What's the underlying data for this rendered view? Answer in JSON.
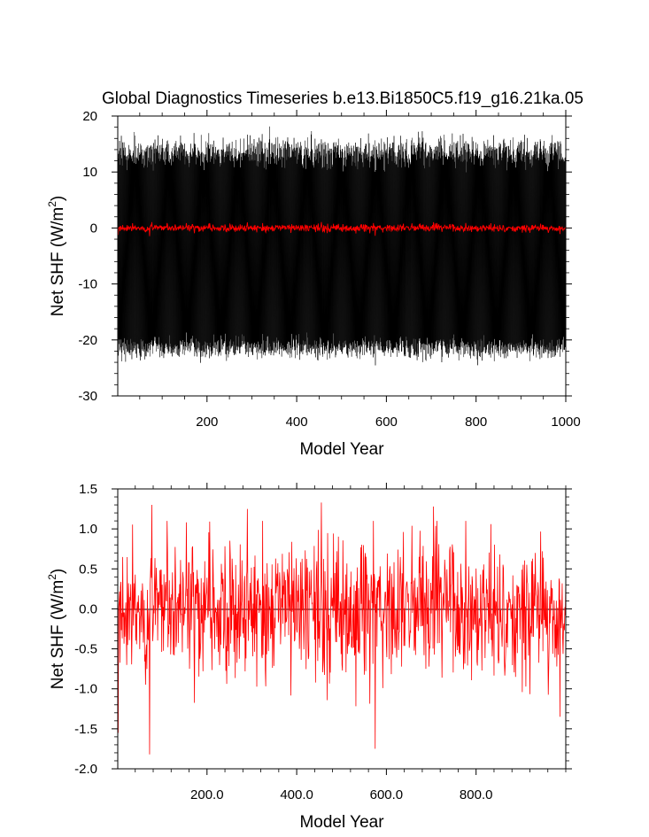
{
  "title": "Global Diagnostics Timeseries b.e13.Bi1850C5.f19_g16.21ka.05",
  "colors": {
    "monthly": "#000000",
    "annual": "#ff0000",
    "axis": "#000000",
    "zero_line": "#000000"
  },
  "chart_data": [
    {
      "type": "line",
      "xlabel": "Model Year",
      "ylabel_main": "Net SHF (W/m",
      "ylabel_sup": "2",
      "ylabel_close": ")",
      "xlim": [
        1,
        1000
      ],
      "ylim": [
        -30,
        20
      ],
      "x_ticks": [
        200,
        400,
        600,
        800,
        1000
      ],
      "x_tick_labels": [
        "200",
        "400",
        "600",
        "800",
        "1000"
      ],
      "y_ticks": [
        -30,
        -20,
        -10,
        0,
        10,
        20
      ],
      "y_tick_labels": [
        "-30",
        "-20",
        "-10",
        "0",
        "10",
        "20"
      ],
      "grid": false,
      "series": [
        {
          "color": "black",
          "resolution": "monthly",
          "typical_range": [
            -22,
            14
          ],
          "extremes": [
            -25,
            19
          ],
          "seasonal_cycle": true
        },
        {
          "color": "red",
          "resolution": "annual",
          "typical_range": [
            -1.0,
            1.0
          ],
          "mean": 0.0
        }
      ]
    },
    {
      "type": "line",
      "xlabel": "Model Year",
      "ylabel_main": "Net SHF (W/m",
      "ylabel_sup": "2",
      "ylabel_close": ")",
      "xlim": [
        1,
        1000
      ],
      "ylim": [
        -2.0,
        1.5
      ],
      "x_ticks": [
        200,
        400,
        600,
        800
      ],
      "x_tick_labels": [
        "200.0",
        "400.0",
        "600.0",
        "800.0"
      ],
      "y_ticks": [
        -2.0,
        -1.5,
        -1.0,
        -0.5,
        0.0,
        0.5,
        1.0,
        1.5
      ],
      "y_tick_labels": [
        "-2.0",
        "-1.5",
        "-1.0",
        "-0.5",
        "0.0",
        "0.5",
        "1.0",
        "1.5"
      ],
      "zero_line": 0,
      "grid": false,
      "series": [
        {
          "color": "red",
          "resolution": "annual",
          "mean": 0.0,
          "notable_points": [
            {
              "x": 2,
              "y": -1.55
            },
            {
              "x": 72,
              "y": -1.82
            },
            {
              "x": 77,
              "y": 1.3
            },
            {
              "x": 290,
              "y": 1.25
            },
            {
              "x": 455,
              "y": 1.33
            },
            {
              "x": 575,
              "y": -1.75
            },
            {
              "x": 705,
              "y": 1.28
            },
            {
              "x": 987,
              "y": -1.35
            }
          ]
        }
      ]
    }
  ]
}
